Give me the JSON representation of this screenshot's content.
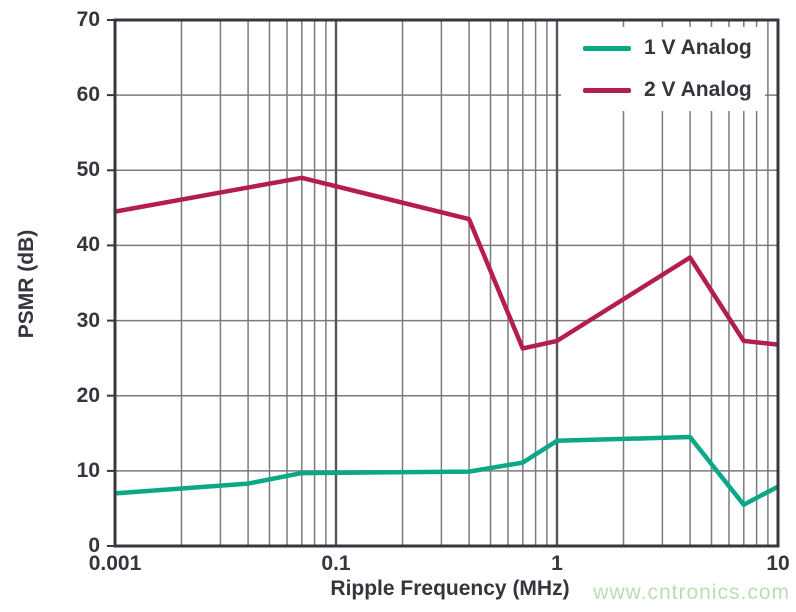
{
  "chart_data": {
    "type": "line",
    "title": "",
    "xlabel": "Ripple Frequency (MHz)",
    "ylabel": "PSMR (dB)",
    "x_axis": {
      "scale": "log",
      "tick_labels": [
        "0.001",
        "0.1",
        "1",
        "10"
      ],
      "segments": 3,
      "minor_multipliers": [
        2,
        3,
        4,
        5,
        6,
        7,
        8,
        9
      ],
      "note": "three log-decade segments with minor gridlines at 2-9 of each decade"
    },
    "y_axis": {
      "min": 0,
      "max": 70,
      "ticks": [
        0,
        10,
        20,
        30,
        40,
        50,
        60,
        70
      ],
      "step": 10
    },
    "grid": true,
    "legend_position": "top-right",
    "series": [
      {
        "name": "1 V Analog",
        "color": "#0aa887",
        "points": [
          {
            "freq_mhz": 0.001,
            "u": 0,
            "psmr_db": 7
          },
          {
            "freq_mhz": 0.04,
            "u": 0.602,
            "psmr_db": 8.3
          },
          {
            "freq_mhz": 0.07,
            "u": 0.845,
            "psmr_db": 9.7
          },
          {
            "freq_mhz": 0.4,
            "u": 1.602,
            "psmr_db": 9.9
          },
          {
            "freq_mhz": 0.7,
            "u": 1.845,
            "psmr_db": 11.1
          },
          {
            "freq_mhz": 1,
            "u": 2,
            "psmr_db": 14
          },
          {
            "freq_mhz": 4,
            "u": 2.602,
            "psmr_db": 14.5
          },
          {
            "freq_mhz": 7,
            "u": 2.845,
            "psmr_db": 5.5
          },
          {
            "freq_mhz": 10,
            "u": 3,
            "psmr_db": 7.9
          }
        ]
      },
      {
        "name": "2 V Analog",
        "color": "#b41e4f",
        "points": [
          {
            "freq_mhz": 0.001,
            "u": 0,
            "psmr_db": 44.5
          },
          {
            "freq_mhz": 0.07,
            "u": 0.845,
            "psmr_db": 49
          },
          {
            "freq_mhz": 0.4,
            "u": 1.602,
            "psmr_db": 43.5
          },
          {
            "freq_mhz": 0.7,
            "u": 1.845,
            "psmr_db": 26.3
          },
          {
            "freq_mhz": 1,
            "u": 2,
            "psmr_db": 27.3
          },
          {
            "freq_mhz": 4,
            "u": 2.602,
            "psmr_db": 38.4
          },
          {
            "freq_mhz": 7,
            "u": 2.845,
            "psmr_db": 27.3
          },
          {
            "freq_mhz": 10,
            "u": 3,
            "psmr_db": 26.8
          }
        ]
      }
    ],
    "colors": {
      "axis_text": "#35353d",
      "border": "#37373f",
      "grid_minor": "#7b7b7b",
      "grid_major": "#55555c"
    }
  },
  "watermark": {
    "text": "www.cntronics.com",
    "color": "#b9dfb0"
  }
}
